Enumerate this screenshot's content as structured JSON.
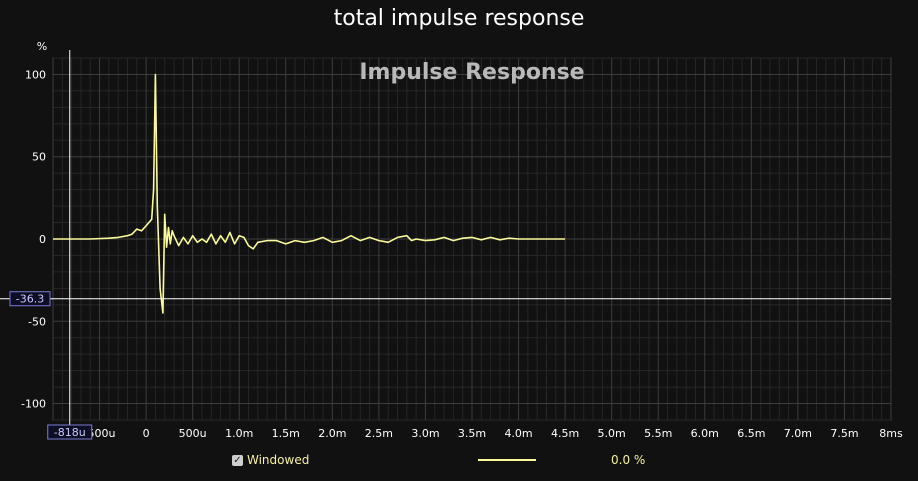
{
  "window": {
    "title": "total impulse response"
  },
  "chart_data": {
    "type": "line",
    "title": "Impulse Response",
    "ylabel": "%",
    "xlabel": "",
    "xunit": "ms",
    "xlim": [
      -1.0,
      8.0
    ],
    "ylim": [
      -110,
      110
    ],
    "grid": true,
    "x_ticks": [
      {
        "value": -1.0,
        "label": "-1"
      },
      {
        "value": -0.5,
        "label": "-500u"
      },
      {
        "value": 0.0,
        "label": "0"
      },
      {
        "value": 0.5,
        "label": "500u"
      },
      {
        "value": 1.0,
        "label": "1.0m"
      },
      {
        "value": 1.5,
        "label": "1.5m"
      },
      {
        "value": 2.0,
        "label": "2.0m"
      },
      {
        "value": 2.5,
        "label": "2.5m"
      },
      {
        "value": 3.0,
        "label": "3.0m"
      },
      {
        "value": 3.5,
        "label": "3.5m"
      },
      {
        "value": 4.0,
        "label": "4.0m"
      },
      {
        "value": 4.5,
        "label": "4.5m"
      },
      {
        "value": 5.0,
        "label": "5.0m"
      },
      {
        "value": 5.5,
        "label": "5.5m"
      },
      {
        "value": 6.0,
        "label": "6.0m"
      },
      {
        "value": 6.5,
        "label": "6.5m"
      },
      {
        "value": 7.0,
        "label": "7.0m"
      },
      {
        "value": 7.5,
        "label": "7.5m"
      },
      {
        "value": 8.0,
        "label": "8ms"
      }
    ],
    "y_ticks": [
      {
        "value": 100,
        "label": "100"
      },
      {
        "value": 50,
        "label": "50"
      },
      {
        "value": 0,
        "label": "0"
      },
      {
        "value": -50,
        "label": "-50"
      },
      {
        "value": -100,
        "label": "-100"
      }
    ],
    "cursor": {
      "x": -0.82,
      "y": -36.3,
      "x_label": "-818u",
      "y_label": "-36.3"
    },
    "series": [
      {
        "color": "#fbfa9a",
        "x": [
          -1.0,
          -0.6,
          -0.4,
          -0.3,
          -0.2,
          -0.15,
          -0.1,
          -0.05,
          0.0,
          0.03,
          0.06,
          0.08,
          0.1,
          0.12,
          0.15,
          0.18,
          0.2,
          0.22,
          0.24,
          0.26,
          0.28,
          0.3,
          0.35,
          0.4,
          0.45,
          0.5,
          0.55,
          0.6,
          0.65,
          0.7,
          0.75,
          0.8,
          0.85,
          0.9,
          0.95,
          1.0,
          1.05,
          1.1,
          1.15,
          1.2,
          1.3,
          1.4,
          1.5,
          1.6,
          1.7,
          1.8,
          1.9,
          2.0,
          2.1,
          2.2,
          2.3,
          2.4,
          2.5,
          2.6,
          2.7,
          2.8,
          2.85,
          2.9,
          3.0,
          3.1,
          3.2,
          3.3,
          3.4,
          3.5,
          3.6,
          3.7,
          3.8,
          3.9,
          4.0,
          4.2,
          4.4,
          4.5
        ],
        "y": [
          0,
          0,
          0.5,
          1,
          2,
          3,
          6,
          5,
          8,
          10,
          12,
          30,
          100,
          20,
          -30,
          -45,
          15,
          -5,
          7,
          -3,
          5,
          2,
          -4,
          1,
          -3,
          2,
          -2,
          0,
          -2,
          3,
          -3,
          2,
          -2,
          4,
          -3,
          2,
          1,
          -4,
          -6,
          -2,
          -1,
          -1,
          -3,
          -1,
          -2,
          -1,
          1,
          -2,
          -1,
          2,
          -1,
          1,
          -1,
          -2,
          1,
          2,
          -1,
          0,
          -1,
          -0.5,
          1,
          -1,
          0.5,
          1,
          -0.5,
          1,
          -0.5,
          0.5,
          0,
          0,
          0,
          0
        ]
      }
    ]
  },
  "footer": {
    "windowed_label": "Windowed",
    "windowed_checked": true,
    "legend_value": "0.0 %"
  }
}
